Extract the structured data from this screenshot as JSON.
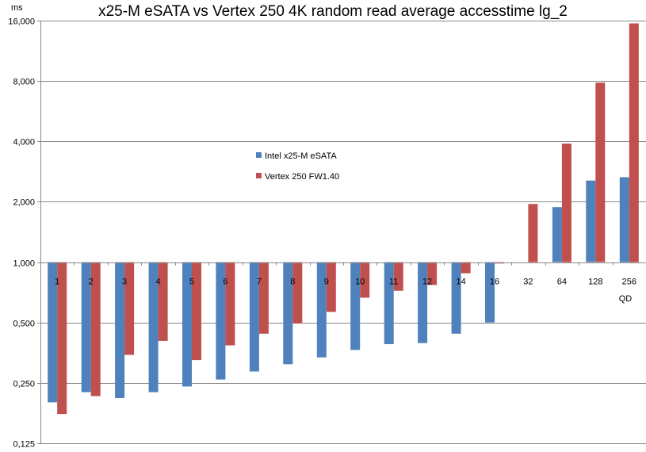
{
  "chart_data": {
    "type": "bar",
    "title": "x25-M eSATA vs Vertex 250 4K random read average accesstime lg_2",
    "ylabel": "ms",
    "xlabel": "QD",
    "y_scale": "log2",
    "ylim": [
      0.125,
      16
    ],
    "y_baseline": 1,
    "y_tick_labels": [
      "0,125",
      "0,250",
      "0,500",
      "1,000",
      "2,000",
      "4,000",
      "8,000",
      "16,000"
    ],
    "grid": true,
    "legend_position": "center-left",
    "categories": [
      "1",
      "2",
      "3",
      "4",
      "5",
      "6",
      "7",
      "8",
      "9",
      "10",
      "11",
      "12",
      "14",
      "16",
      "32",
      "64",
      "128",
      "256"
    ],
    "series": [
      {
        "name": "Intel x25-M eSATA",
        "color": "#4f81bd",
        "values": [
          0.2,
          0.225,
          0.21,
          0.225,
          0.24,
          0.26,
          0.285,
          0.31,
          0.335,
          0.365,
          0.39,
          0.395,
          0.44,
          0.5,
          null,
          1.88,
          2.55,
          2.65
        ]
      },
      {
        "name": "Vertex 250 FW1.40",
        "color": "#c0504d",
        "values": [
          0.175,
          0.215,
          0.345,
          0.405,
          0.325,
          0.385,
          0.44,
          0.495,
          0.565,
          0.665,
          0.72,
          0.77,
          0.88,
          0.985,
          1.95,
          3.9,
          7.85,
          15.5
        ]
      }
    ]
  }
}
